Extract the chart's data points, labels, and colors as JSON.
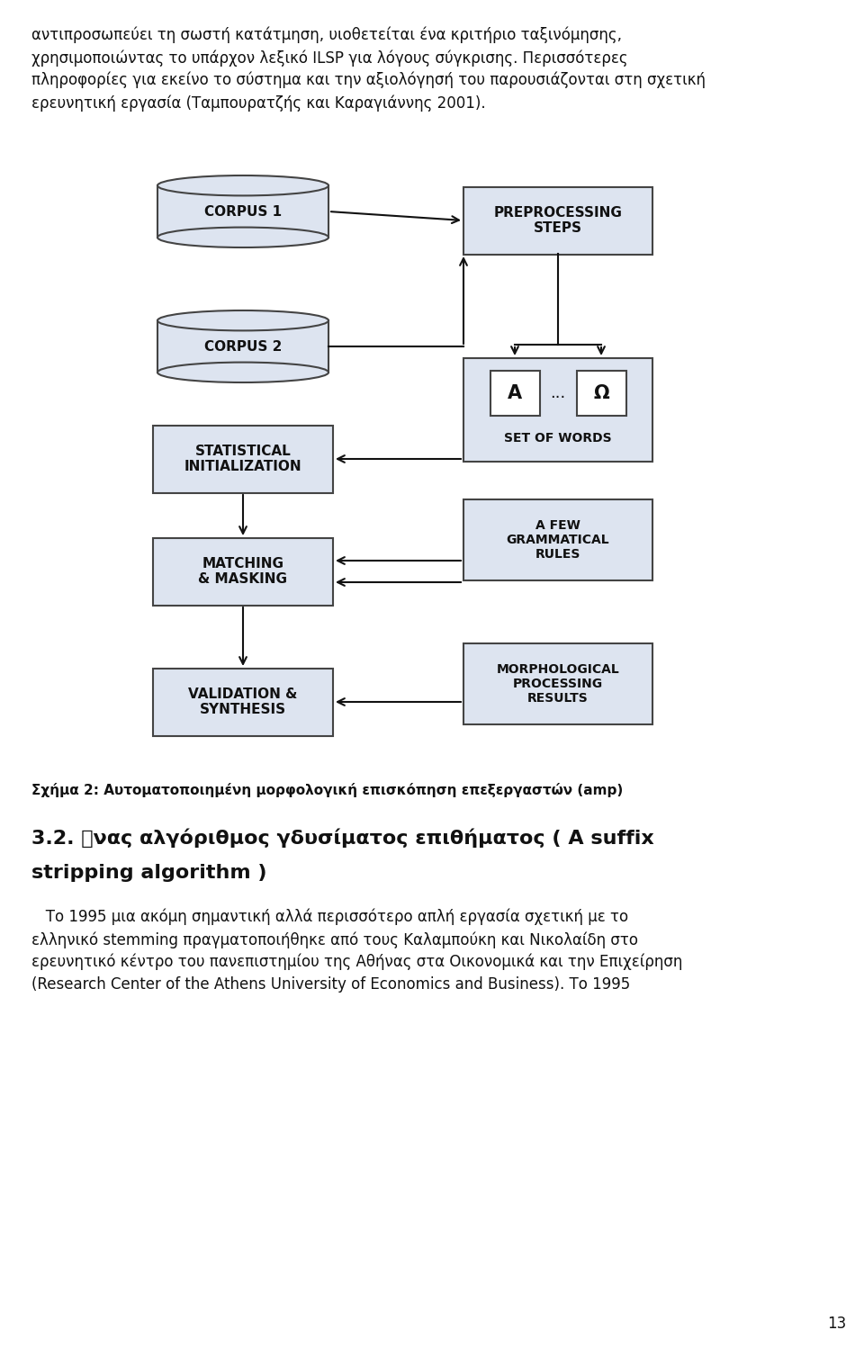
{
  "bg_color": "#ffffff",
  "box_fill": "#dde4f0",
  "box_edge": "#444444",
  "arrow_color": "#111111",
  "text_color": "#111111",
  "top_text": [
    "αντιπροσωπεύει  τη  σωστή  κατάτμηση,  υιοθετείται  ένα  κριτήριο  ταξινόμησης,",
    "χρησιμοποιώντας το υπάρχον λεξικό ILSP για λόγους σύγκρισης. Περισσότερες",
    "πληροφορίες για εκείνο το σύστημα και την αξιολόγησή του παρουσιάζονται στη σχετική",
    "ερευνητική εργασία (Ταμπουρατζής και Καραγιάννης 2001)."
  ],
  "caption": "Σχήμα 2: Αυτοματοποιημένη μορφολογική επισκόπηση επεξεργαστών (amp)",
  "bottom_heading": "3.2. ΍νας αλγόριθμος γδυσίματος επιθήματος ( A suffix\nstripping algorithm )",
  "bottom_text": [
    "   Το 1995 μια ακόμη σημαντική αλλά περισσότερο απλή εργασία σχετική με το",
    "ελληνικό stemming πραγματοποιήθηκε από τους Καλαμπούκη και Νικολαίδη στο",
    "ερευνητικό κέντρο του πανεπιστημίου της Αθήνας στα Οικονομικά και την Επιχείρηση",
    "(Research Center of the Athens University of Economics and Business). Το 1995"
  ],
  "page_num": "13"
}
